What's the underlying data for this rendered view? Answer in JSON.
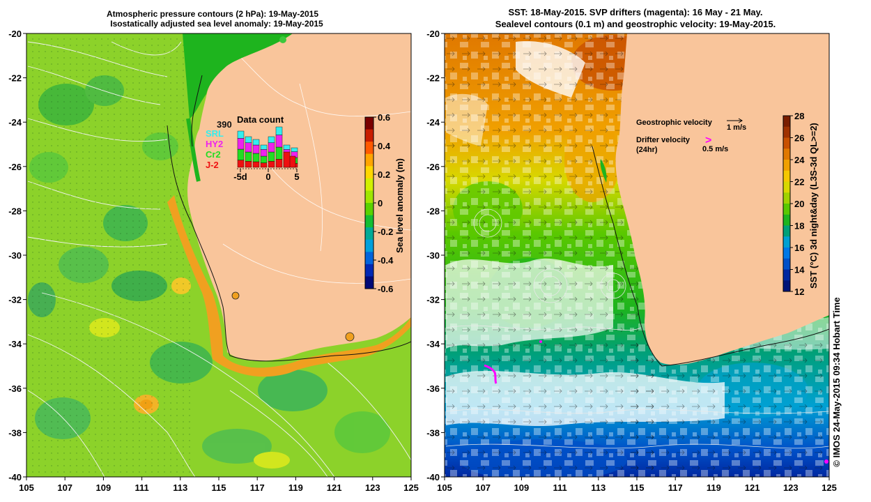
{
  "left_panel": {
    "title_line1": "Atmospheric pressure contours (2 hPa): 19-May-2015",
    "title_line2": "Isostatically adjusted sea level anomaly: 19-May-2015",
    "colorbar": {
      "label": "Sea level anomaly (m)",
      "ticks": [
        "0.6",
        "0.4",
        "0.2",
        "0",
        "-0.2",
        "-0.4",
        "-0.6"
      ],
      "colors": [
        "#7a0000",
        "#c81e00",
        "#ff5a00",
        "#ffa500",
        "#ffd700",
        "#d2f000",
        "#a0e600",
        "#5ad200",
        "#14be32",
        "#00aa96",
        "#00a0dc",
        "#0064dc",
        "#0028b4",
        "#000a78"
      ]
    },
    "data_count": {
      "title": "Data count",
      "total": "390",
      "legend": [
        {
          "label": "SRL",
          "color": "#33eeee"
        },
        {
          "label": "HY2",
          "color": "#ee22ee"
        },
        {
          "label": "Cr2",
          "color": "#22dd22"
        },
        {
          "label": "J-2",
          "color": "#ee1111"
        }
      ],
      "axis_labels": [
        "-5d",
        "0",
        "5"
      ]
    }
  },
  "right_panel": {
    "title_line1": "SST: 18-May-2015. SVP drifters (magenta): 16 May - 21 May.",
    "title_line2": "Sealevel contours (0.1 m) and geostrophic velocity: 19-May-2015.",
    "geostrophic_label": "Geostrophic velocity",
    "geostrophic_scale": "1 m/s",
    "drifter_label_line1": "Drifter velocity",
    "drifter_label_line2": "(24hr)",
    "drifter_scale": "0.5 m/s",
    "drifter_marker": ">",
    "colorbar": {
      "label": "SST (°C) 3d night&day (L3S-3d QL>=2)",
      "ticks": [
        "28",
        "26",
        "24",
        "22",
        "20",
        "18",
        "16",
        "14",
        "12"
      ],
      "colors": [
        "#7a1e00",
        "#a03200",
        "#c85000",
        "#e07800",
        "#f0a000",
        "#f5c800",
        "#d8d800",
        "#a0d200",
        "#5ac800",
        "#1eb41e",
        "#00a078",
        "#00a0d2",
        "#0078e6",
        "#0050c8",
        "#0028a0",
        "#001478"
      ]
    }
  },
  "axes": {
    "x_ticks": [
      "105",
      "107",
      "109",
      "111",
      "113",
      "115",
      "117",
      "119",
      "121",
      "123",
      "125"
    ],
    "y_ticks": [
      "-20",
      "-22",
      "-24",
      "-26",
      "-28",
      "-30",
      "-32",
      "-34",
      "-36",
      "-38",
      "-40"
    ]
  },
  "credit": "© IMOS 24-May-2015 09:34 Hobart Time",
  "colors": {
    "land": "#f9c59b",
    "ocean_green": "#8cd22a",
    "coast_orange": "#f0a020",
    "magenta": "#ff00ff"
  }
}
